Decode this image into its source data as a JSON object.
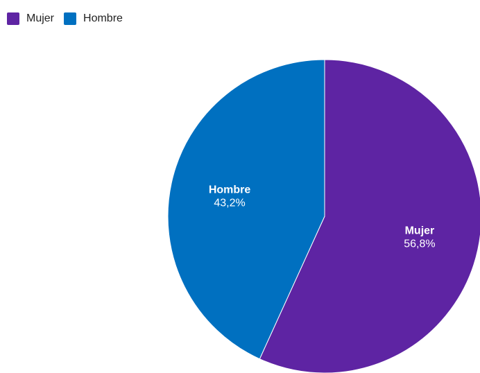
{
  "chart_data": {
    "type": "pie",
    "slices": [
      {
        "label": "Mujer",
        "value": 56.8,
        "display": "56,8%",
        "color": "#5e24a3"
      },
      {
        "label": "Hombre",
        "value": 43.2,
        "display": "43,2%",
        "color": "#0070c0"
      }
    ],
    "legend_position": "top-left"
  }
}
